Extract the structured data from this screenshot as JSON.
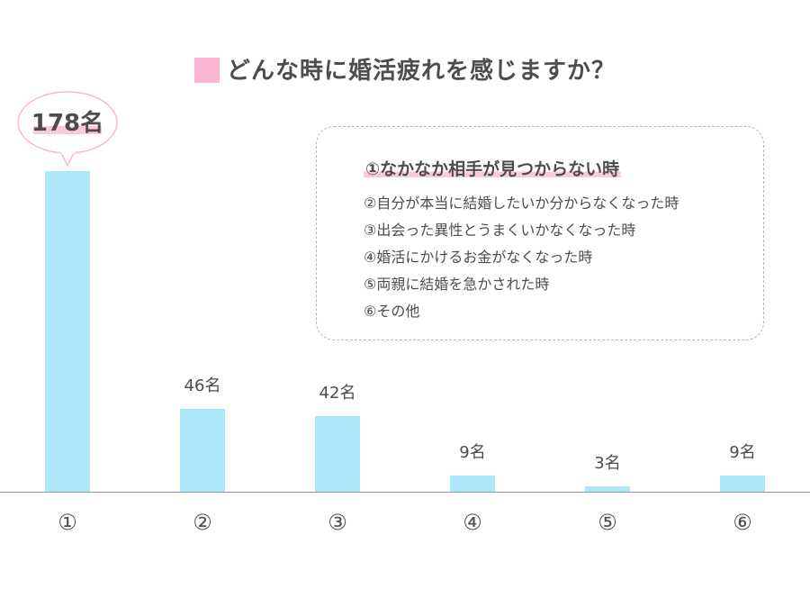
{
  "title": "どんな時に婚活疲れを感じますか？",
  "legend_items": [
    "①なかなか相手が見つからない時",
    "②自分が本当に結婚したいか分からなくなった時",
    "③出会った異性とうまくいかなくなった時",
    "④婚活にかけるお金がなくなった時",
    "⑤両親に結婚を急かされた時",
    "⑥その他"
  ],
  "colors": {
    "bar": "#aee6fa",
    "title_marker": "#fbb6d3",
    "highlight": "#fbc9dd",
    "axis": "#9a9a9a",
    "text": "#4d4d4d"
  },
  "chart_data": {
    "type": "bar",
    "title": "どんな時に婚活疲れを感じますか？",
    "categories": [
      "①",
      "②",
      "③",
      "④",
      "⑤",
      "⑥"
    ],
    "values": [
      178,
      46,
      42,
      9,
      3,
      9
    ],
    "unit": "名",
    "data_labels": [
      "178名",
      "46名",
      "42名",
      "9名",
      "3名",
      "9名"
    ],
    "highlighted_category": "①",
    "ylim": [
      0,
      178
    ],
    "grid": false
  }
}
